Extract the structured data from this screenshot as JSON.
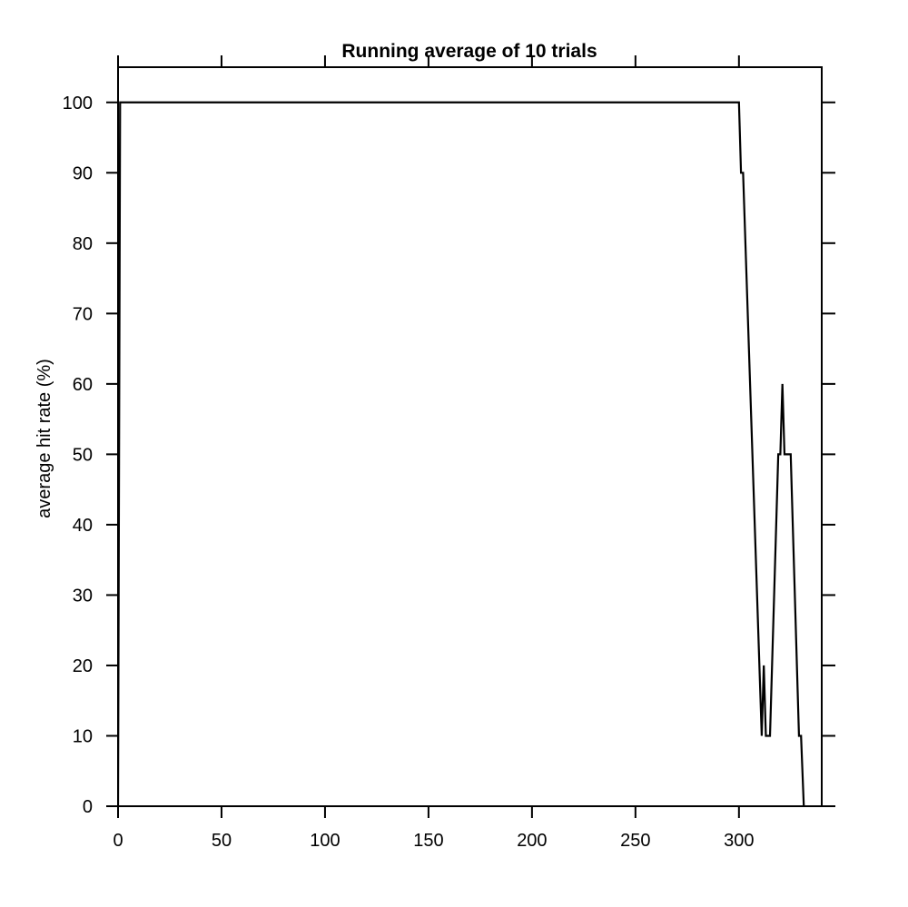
{
  "chart_data": {
    "type": "line",
    "title": "Running average of 10 trials",
    "xlabel": "",
    "ylabel": "average hit rate (%)",
    "xlim": [
      0,
      340
    ],
    "ylim": [
      0,
      105
    ],
    "xticks": [
      0,
      50,
      100,
      150,
      200,
      250,
      300
    ],
    "yticks": [
      0,
      10,
      20,
      30,
      40,
      50,
      60,
      70,
      80,
      90,
      100
    ],
    "grid": false,
    "line_color": "#000000",
    "series": [
      {
        "x": [
          0,
          1,
          2,
          300,
          301,
          302,
          311,
          312,
          313,
          315,
          319,
          320,
          321,
          322,
          325,
          329,
          330,
          332
        ],
        "y": [
          0,
          100,
          100,
          100,
          90,
          90,
          10,
          20,
          10,
          10,
          50,
          50,
          60,
          50,
          50,
          10,
          10,
          -5
        ]
      }
    ]
  }
}
